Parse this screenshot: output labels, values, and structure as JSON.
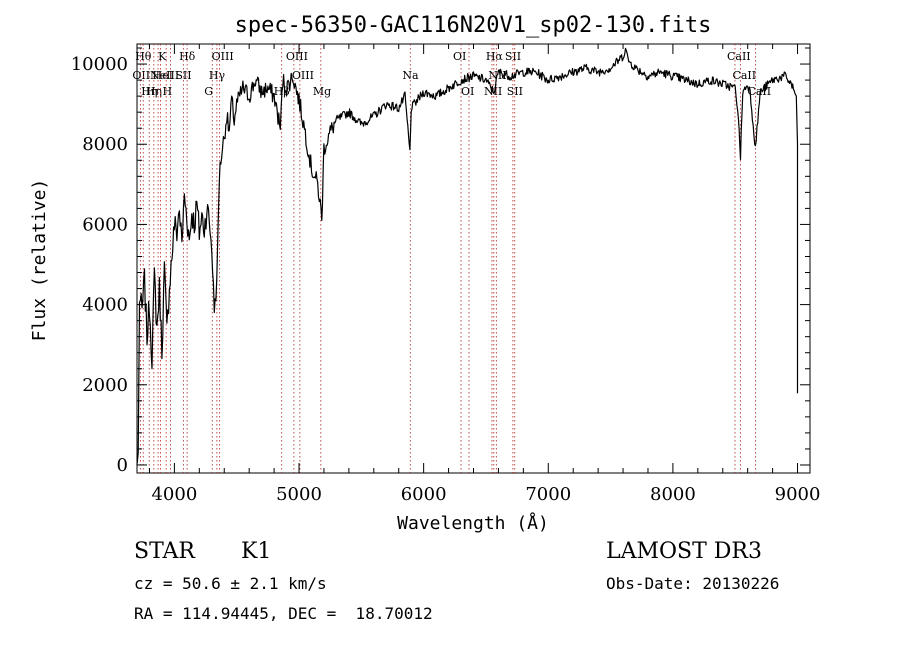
{
  "chart_data": {
    "type": "line",
    "title": "spec-56350-GAC116N20V1_sp02-130.fits",
    "xlabel": "Wavelength (Å)",
    "ylabel": "Flux (relative)",
    "xlim": [
      3700,
      9100
    ],
    "ylim": [
      -200,
      10500
    ],
    "xticks": [
      4000,
      5000,
      6000,
      7000,
      8000,
      9000
    ],
    "yticks": [
      0,
      2000,
      4000,
      6000,
      8000,
      10000
    ],
    "line_color": "#000000",
    "marker_color": "#b22222",
    "series": [
      {
        "x": [
          3700,
          3710,
          3720,
          3740,
          3760,
          3780,
          3800,
          3820,
          3840,
          3860,
          3880,
          3900,
          3920,
          3940,
          3960,
          3980,
          4000,
          4020,
          4040,
          4060,
          4080,
          4100,
          4120,
          4140,
          4160,
          4180,
          4200,
          4220,
          4240,
          4260,
          4280,
          4300,
          4320,
          4340,
          4360,
          4380,
          4400,
          4420,
          4440,
          4460,
          4480,
          4500,
          4550,
          4600,
          4650,
          4700,
          4750,
          4800,
          4850,
          4870,
          4900,
          4950,
          5000,
          5050,
          5100,
          5150,
          5170,
          5183,
          5200,
          5250,
          5300,
          5400,
          5500,
          5600,
          5700,
          5800,
          5850,
          5890,
          5900,
          5950,
          6000,
          6100,
          6200,
          6300,
          6400,
          6500,
          6563,
          6600,
          6700,
          6800,
          6900,
          7000,
          7100,
          7200,
          7300,
          7400,
          7500,
          7600,
          7620,
          7640,
          7700,
          7800,
          7900,
          8000,
          8100,
          8200,
          8300,
          8400,
          8500,
          8520,
          8542,
          8560,
          8600,
          8620,
          8662,
          8700,
          8800,
          8900,
          8950,
          8990,
          9000
        ],
        "y": [
          0,
          300,
          4200,
          3800,
          4600,
          3200,
          4000,
          2700,
          4700,
          3400,
          4400,
          2900,
          4900,
          3300,
          4500,
          5200,
          6000,
          5800,
          6400,
          5500,
          6700,
          6200,
          5600,
          6300,
          6000,
          6500,
          5800,
          6200,
          5900,
          6400,
          6100,
          5400,
          3900,
          4500,
          7200,
          7800,
          8200,
          8700,
          8300,
          9100,
          8600,
          9000,
          9400,
          9200,
          9600,
          9300,
          9400,
          9200,
          8400,
          9600,
          9400,
          9700,
          9100,
          8300,
          7400,
          7000,
          6500,
          6100,
          7900,
          8300,
          8600,
          8800,
          8500,
          8700,
          9000,
          8900,
          9200,
          7800,
          8900,
          9100,
          9300,
          9200,
          9400,
          9600,
          9700,
          9600,
          9300,
          9800,
          9700,
          9800,
          9800,
          9600,
          9700,
          9800,
          9900,
          9800,
          9900,
          10200,
          10400,
          10100,
          9900,
          9700,
          9800,
          9700,
          9600,
          9500,
          9600,
          9500,
          9400,
          8900,
          7700,
          9300,
          9500,
          9300,
          7900,
          9300,
          9600,
          9700,
          9500,
          9200,
          8000
        ]
      }
    ],
    "line_markers": [
      {
        "x": 3727,
        "label": "OII",
        "tier": 2
      },
      {
        "x": 3750,
        "label": "Hθ",
        "tier": 1
      },
      {
        "x": 3798,
        "label": "Hη",
        "tier": 3
      },
      {
        "x": 3835,
        "label": "Hη",
        "tier": 3
      },
      {
        "x": 3869,
        "label": "NeIII",
        "tier": 2
      },
      {
        "x": 3889,
        "label": "HeI",
        "tier": 2
      },
      {
        "x": 3934,
        "label": "K",
        "tier": 1
      },
      {
        "x": 3969,
        "label": "H",
        "tier": 3
      },
      {
        "x": 4072,
        "label": "SII",
        "tier": 2
      },
      {
        "x": 4102,
        "label": "Hδ",
        "tier": 1
      },
      {
        "x": 4304,
        "label": "G",
        "tier": 3
      },
      {
        "x": 4341,
        "label": "Hγ",
        "tier": 2
      },
      {
        "x": 4363,
        "label": "OIII",
        "tier": 1
      },
      {
        "x": 4861,
        "label": "Hβ",
        "tier": 3
      },
      {
        "x": 4959,
        "label": "OIII",
        "tier": 1
      },
      {
        "x": 5007,
        "label": "OIII",
        "tier": 2
      },
      {
        "x": 5175,
        "label": "Mg",
        "tier": 3
      },
      {
        "x": 5893,
        "label": "Na",
        "tier": 2
      },
      {
        "x": 6300,
        "label": "OI",
        "tier": 1
      },
      {
        "x": 6364,
        "label": "OI",
        "tier": 3
      },
      {
        "x": 6548,
        "label": "NII",
        "tier": 3
      },
      {
        "x": 6563,
        "label": "Hα",
        "tier": 1
      },
      {
        "x": 6583,
        "label": "NII",
        "tier": 2
      },
      {
        "x": 6716,
        "label": "SII",
        "tier": 1
      },
      {
        "x": 6731,
        "label": "SII",
        "tier": 3
      },
      {
        "x": 8498,
        "label": "CaII",
        "tier": 1
      },
      {
        "x": 8542,
        "label": "CaII",
        "tier": 2
      },
      {
        "x": 8662,
        "label": "CaII",
        "tier": 3
      }
    ]
  },
  "info": {
    "object_class": "STAR",
    "subclass": "K1",
    "survey": "LAMOST DR3",
    "redshift": "cz = 50.6 ± 2.1 km/s",
    "obs_date": "Obs-Date: 20130226",
    "coordinates": "RA = 114.94445, DEC =  18.70012"
  }
}
